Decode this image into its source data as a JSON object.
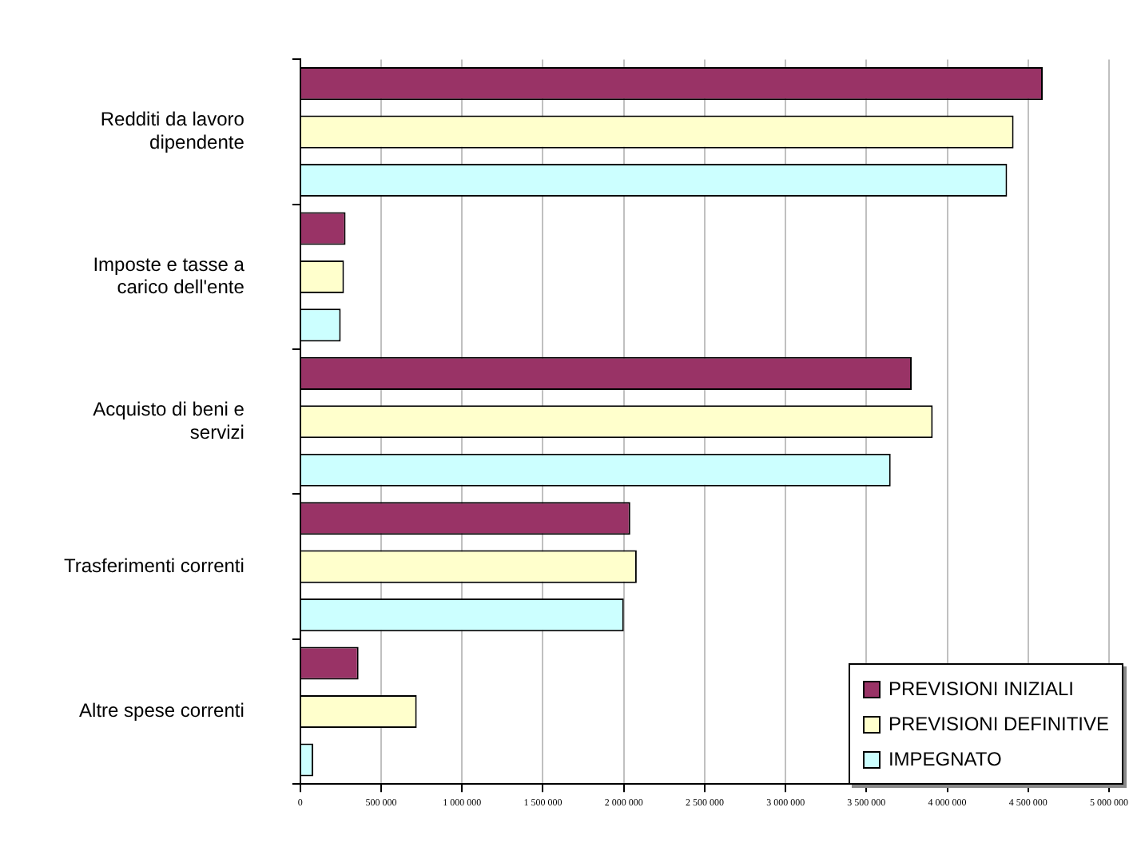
{
  "chart_data": {
    "type": "bar",
    "orientation": "horizontal",
    "categories": [
      "Redditi da lavoro dipendente",
      "Imposte e tasse a carico dell'ente",
      "Acquisto di beni e servizi",
      "Trasferimenti correnti",
      "Altre spese correnti"
    ],
    "series": [
      {
        "name": "PREVISIONI INIZIALI",
        "color": "#993366",
        "values": [
          4590000,
          280000,
          3780000,
          2040000,
          360000
        ]
      },
      {
        "name": "PREVISIONI DEFINITIVE",
        "color": "#ffffcc",
        "values": [
          4410000,
          270000,
          3910000,
          2080000,
          720000
        ]
      },
      {
        "name": "IMPEGNATO",
        "color": "#ccffff",
        "values": [
          4370000,
          250000,
          3650000,
          2000000,
          80000
        ]
      }
    ],
    "xlim": [
      0,
      5000000
    ],
    "xticks": [
      0,
      {
        "value": 500000,
        "label": "500 000"
      },
      {
        "value": 1000000,
        "label": "1 000 000"
      },
      {
        "value": 1500000,
        "label": "1 500 000"
      },
      {
        "value": 2000000,
        "label": "2 000 000"
      },
      {
        "value": 2500000,
        "label": "2 500 000"
      },
      {
        "value": 3000000,
        "label": "3 000 000"
      },
      {
        "value": 3500000,
        "label": "3 500 000"
      },
      {
        "value": 4000000,
        "label": "4 000 000"
      },
      {
        "value": 4500000,
        "label": "4 500 000"
      },
      {
        "value": 5000000,
        "label": "5 000 000"
      }
    ],
    "grid": "x",
    "legend": "bottom right"
  }
}
